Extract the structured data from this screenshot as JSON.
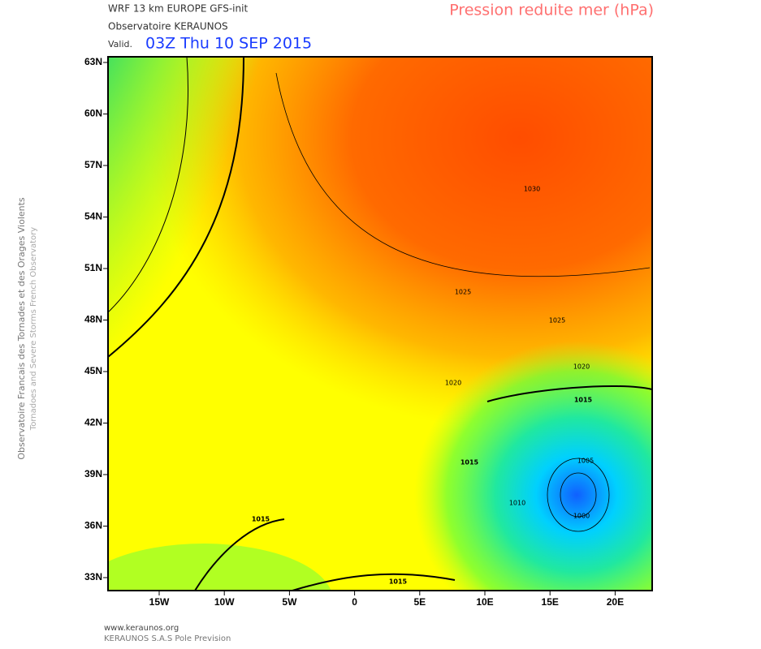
{
  "header": {
    "model": "WRF 13 km EUROPE  GFS-init",
    "observatory": "Observatoire KERAUNOS",
    "valid_prefix": "Valid.",
    "valid_time": "03Z Thu 10 SEP 2015",
    "field": "Pression reduite mer (hPa)"
  },
  "side_text": [
    "Observatoire Francais des Tornades et des Orages Violents",
    "Tornadoes and Severe Storms French Observatory"
  ],
  "lat_labels": [
    "63N",
    "60N",
    "57N",
    "54N",
    "51N",
    "48N",
    "45N",
    "42N",
    "39N",
    "36N",
    "33N"
  ],
  "lon_labels": [
    "15W",
    "10W",
    "5W",
    "0",
    "5E",
    "10E",
    "15E",
    "20E"
  ],
  "contour_labels": [
    "1030",
    "1025",
    "1025",
    "1020",
    "1020",
    "1015",
    "1015",
    "1015",
    "1015",
    "1010",
    "1005",
    "1000"
  ],
  "footer": [
    "www.keraunos.org",
    "KERAUNOS S.A.S Pole Prevision"
  ]
}
